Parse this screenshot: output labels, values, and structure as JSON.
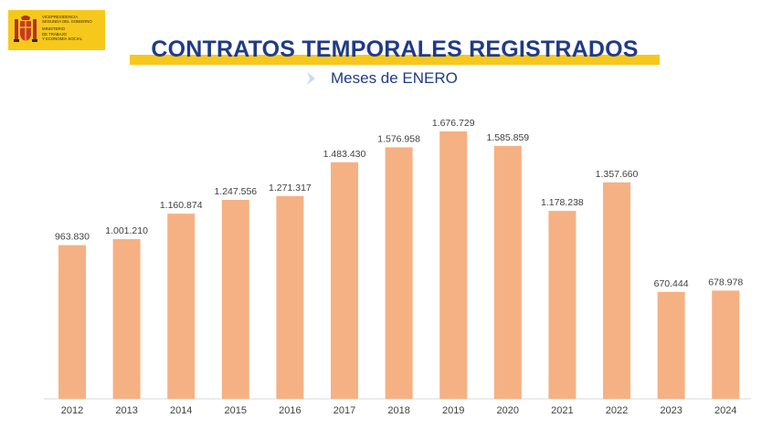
{
  "header": {
    "logo_lines": [
      "VICEPRESIDENCIA",
      "SEGUNDA DEL GOBIERNO",
      "MINISTERIO",
      "DE TRABAJO",
      "Y ECONOMÍA SOCIAL"
    ],
    "title": "CONTRATOS TEMPORALES REGISTRADOS",
    "subtitle": "Meses de ENERO"
  },
  "colors": {
    "bar": "#f5b183",
    "title": "#1f3b88",
    "accent": "#f7c81c",
    "chevron": "#cfd8ee"
  },
  "chart_data": {
    "type": "bar",
    "categories": [
      "2012",
      "2013",
      "2014",
      "2015",
      "2016",
      "2017",
      "2018",
      "2019",
      "2020",
      "2021",
      "2022",
      "2023",
      "2024"
    ],
    "values": [
      963830,
      1001210,
      1160874,
      1247556,
      1271317,
      1483430,
      1576958,
      1676729,
      1585859,
      1178238,
      1357660,
      670444,
      678978
    ],
    "value_labels": [
      "963.830",
      "1.001.210",
      "1.160.874",
      "1.247.556",
      "1.271.317",
      "1.483.430",
      "1.576.958",
      "1.676.729",
      "1.585.859",
      "1.178.238",
      "1.357.660",
      "670.444",
      "678.978"
    ],
    "title": "CONTRATOS TEMPORALES REGISTRADOS",
    "subtitle": "Meses de ENERO",
    "xlabel": "",
    "ylabel": "",
    "ylim": [
      0,
      1676729
    ],
    "grid": false,
    "legend": "none"
  }
}
